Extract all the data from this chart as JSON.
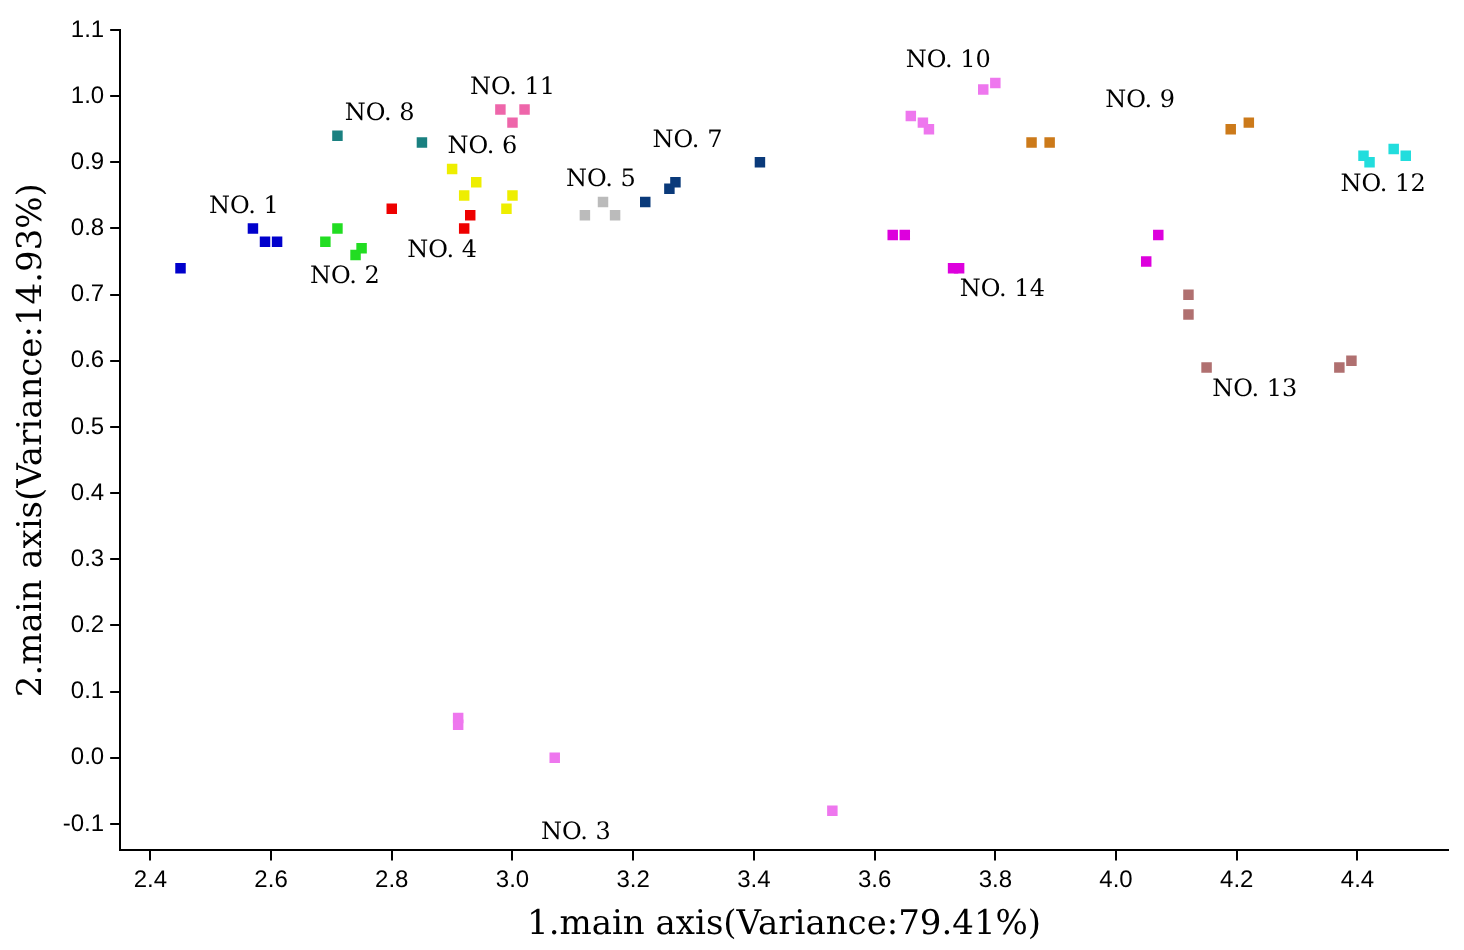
{
  "chart_data": {
    "type": "scatter",
    "xlabel": "1.main axis(Variance:79.41%)",
    "ylabel": "2.main axis(Variance:14.93%)",
    "xlim": [
      2.35,
      4.55
    ],
    "ylim": [
      -0.14,
      1.1
    ],
    "xticks": [
      {
        "value": 2.4,
        "label": "2.4"
      },
      {
        "value": 2.6,
        "label": "2.6"
      },
      {
        "value": 2.8,
        "label": "2.8"
      },
      {
        "value": 3.0,
        "label": "3.0"
      },
      {
        "value": 3.2,
        "label": "3.2"
      },
      {
        "value": 3.4,
        "label": "3.4"
      },
      {
        "value": 3.6,
        "label": "3.6"
      },
      {
        "value": 3.8,
        "label": "3.8"
      },
      {
        "value": 4.0,
        "label": "4.0"
      },
      {
        "value": 4.2,
        "label": "4.2"
      },
      {
        "value": 4.4,
        "label": "4.4"
      }
    ],
    "yticks": [
      {
        "value": -0.1,
        "label": "-0.1"
      },
      {
        "value": 0.0,
        "label": "0.0"
      },
      {
        "value": 0.1,
        "label": "0.1"
      },
      {
        "value": 0.2,
        "label": "0.2"
      },
      {
        "value": 0.3,
        "label": "0.3"
      },
      {
        "value": 0.4,
        "label": "0.4"
      },
      {
        "value": 0.5,
        "label": "0.5"
      },
      {
        "value": 0.6,
        "label": "0.6"
      },
      {
        "value": 0.7,
        "label": "0.7"
      },
      {
        "value": 0.8,
        "label": "0.8"
      },
      {
        "value": 0.9,
        "label": "0.9"
      },
      {
        "value": 1.0,
        "label": "1.0"
      },
      {
        "value": 1.1,
        "label": "1.1"
      }
    ],
    "grid": false,
    "legend": false,
    "marker": "square",
    "series": [
      {
        "name": "NO. 1",
        "color": "#0000cc",
        "x": [
          2.45,
          2.57,
          2.59,
          2.61
        ],
        "values": [
          0.74,
          0.8,
          0.78,
          0.78
        ]
      },
      {
        "name": "NO. 2",
        "color": "#22dd22",
        "x": [
          2.69,
          2.71,
          2.74,
          2.75
        ],
        "values": [
          0.78,
          0.8,
          0.76,
          0.77
        ]
      },
      {
        "name": "NO. 3",
        "color": "#ee77ee",
        "x": [
          2.91,
          2.91,
          3.07,
          3.53
        ],
        "values": [
          0.05,
          0.06,
          0.0,
          -0.08
        ]
      },
      {
        "name": "NO. 4",
        "color": "#ee0000",
        "x": [
          2.8,
          2.93,
          2.92
        ],
        "values": [
          0.83,
          0.82,
          0.8
        ]
      },
      {
        "name": "NO. 5",
        "color": "#bbbbbb",
        "x": [
          3.15,
          3.17,
          3.12
        ],
        "values": [
          0.84,
          0.82,
          0.82
        ]
      },
      {
        "name": "NO. 6",
        "color": "#eeee00",
        "x": [
          2.9,
          2.94,
          2.92,
          3.0,
          2.99
        ],
        "values": [
          0.89,
          0.87,
          0.85,
          0.85,
          0.83
        ]
      },
      {
        "name": "NO. 7",
        "color": "#0a3a7a",
        "x": [
          3.22,
          3.26,
          3.27,
          3.41
        ],
        "values": [
          0.84,
          0.86,
          0.87,
          0.9
        ]
      },
      {
        "name": "NO. 8",
        "color": "#1a8080",
        "x": [
          2.71,
          2.85
        ],
        "values": [
          0.94,
          0.93
        ]
      },
      {
        "name": "NO. 9",
        "color": "#cc7a1a",
        "x": [
          3.86,
          3.89,
          4.19,
          4.22
        ],
        "values": [
          0.93,
          0.93,
          0.95,
          0.96
        ]
      },
      {
        "name": "NO. 10",
        "color": "#ee77ee",
        "x": [
          3.66,
          3.68,
          3.69,
          3.78,
          3.8
        ],
        "values": [
          0.97,
          0.96,
          0.95,
          1.01,
          1.02
        ]
      },
      {
        "name": "NO. 11",
        "color": "#ee66aa",
        "x": [
          2.98,
          3.0,
          3.02
        ],
        "values": [
          0.98,
          0.96,
          0.98
        ]
      },
      {
        "name": "NO. 12",
        "color": "#22dddd",
        "x": [
          4.41,
          4.42,
          4.46,
          4.48
        ],
        "values": [
          0.91,
          0.9,
          0.92,
          0.91
        ]
      },
      {
        "name": "NO. 13",
        "color": "#b07070",
        "x": [
          4.12,
          4.12,
          4.15,
          4.39,
          4.37
        ],
        "values": [
          0.7,
          0.67,
          0.59,
          0.6,
          0.59
        ]
      },
      {
        "name": "NO. 14",
        "color": "#dd00dd",
        "x": [
          3.63,
          3.65,
          3.73,
          3.74,
          4.07,
          4.05
        ],
        "values": [
          0.79,
          0.79,
          0.74,
          0.74,
          0.79,
          0.75
        ]
      }
    ]
  }
}
